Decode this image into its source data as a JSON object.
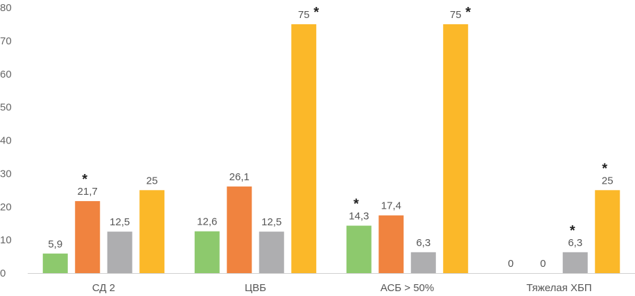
{
  "chart_data": {
    "type": "bar",
    "categories": [
      "СД 2",
      "ЦВБ",
      "АСБ > 50%",
      "Тяжелая ХБП"
    ],
    "ylim": [
      0,
      80
    ],
    "yticks": [
      0,
      10,
      20,
      30,
      40,
      50,
      60,
      70,
      80
    ],
    "grid": false,
    "legend": "none",
    "title": "",
    "xlabel": "",
    "ylabel": "",
    "series": [
      {
        "color": "#8DC96D",
        "values": [
          5.9,
          12.6,
          14.3,
          0
        ],
        "labels": [
          "5,9",
          "12,6",
          "14,3",
          "0"
        ],
        "significant": [
          false,
          false,
          true,
          false
        ]
      },
      {
        "color": "#F0833F",
        "values": [
          21.7,
          26.1,
          17.4,
          0
        ],
        "labels": [
          "21,7",
          "26,1",
          "17,4",
          "0"
        ],
        "significant": [
          true,
          false,
          false,
          false
        ]
      },
      {
        "color": "#AEAEB0",
        "values": [
          12.5,
          12.5,
          6.3,
          6.3
        ],
        "labels": [
          "12,5",
          "12,5",
          "6,3",
          "6,3"
        ],
        "significant": [
          false,
          false,
          false,
          true
        ]
      },
      {
        "color": "#FBB829",
        "values": [
          25,
          75,
          75,
          25
        ],
        "labels": [
          "25",
          "75",
          "75",
          "25"
        ],
        "significant": [
          false,
          true,
          true,
          true
        ]
      }
    ],
    "significance_marker": "*"
  }
}
